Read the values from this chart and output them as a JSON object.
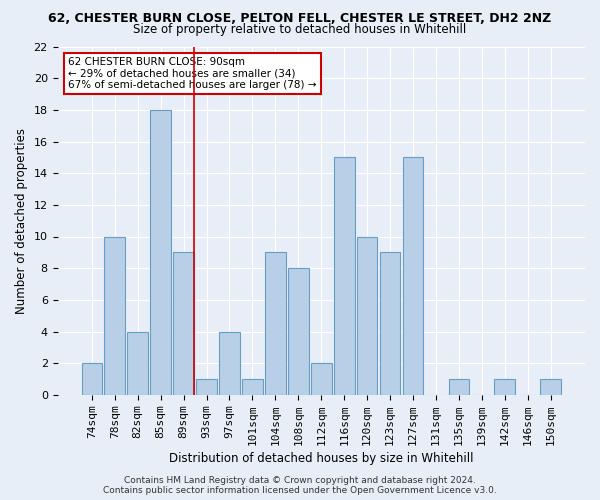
{
  "title_line1": "62, CHESTER BURN CLOSE, PELTON FELL, CHESTER LE STREET, DH2 2NZ",
  "title_line2": "Size of property relative to detached houses in Whitehill",
  "xlabel": "Distribution of detached houses by size in Whitehill",
  "ylabel": "Number of detached properties",
  "categories": [
    "74sqm",
    "78sqm",
    "82sqm",
    "85sqm",
    "89sqm",
    "93sqm",
    "97sqm",
    "101sqm",
    "104sqm",
    "108sqm",
    "112sqm",
    "116sqm",
    "120sqm",
    "123sqm",
    "127sqm",
    "131sqm",
    "135sqm",
    "139sqm",
    "142sqm",
    "146sqm",
    "150sqm"
  ],
  "values": [
    2,
    10,
    4,
    18,
    9,
    1,
    4,
    1,
    9,
    8,
    2,
    15,
    10,
    9,
    15,
    0,
    1,
    0,
    1,
    0,
    1
  ],
  "bar_color": "#b8cfe8",
  "bar_edge_color": "#6b9dc2",
  "highlight_line_index": 4,
  "highlight_color": "#cc0000",
  "annotation_text": "62 CHESTER BURN CLOSE: 90sqm\n← 29% of detached houses are smaller (34)\n67% of semi-detached houses are larger (78) →",
  "annotation_box_color": "#ffffff",
  "annotation_box_edge_color": "#cc0000",
  "ylim": [
    0,
    22
  ],
  "yticks": [
    0,
    2,
    4,
    6,
    8,
    10,
    12,
    14,
    16,
    18,
    20,
    22
  ],
  "footnote": "Contains HM Land Registry data © Crown copyright and database right 2024.\nContains public sector information licensed under the Open Government Licence v3.0.",
  "background_color": "#e8eef7",
  "grid_color": "#ffffff",
  "title_fontsize": 9,
  "subtitle_fontsize": 8.5,
  "axis_label_fontsize": 8.5,
  "tick_fontsize": 8,
  "annotation_fontsize": 7.5,
  "footnote_fontsize": 6.5
}
